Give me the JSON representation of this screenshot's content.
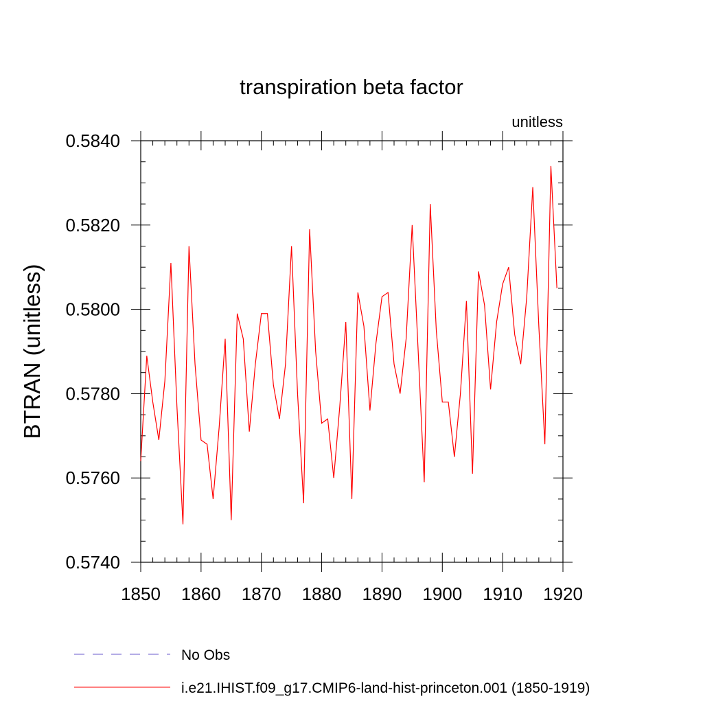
{
  "chart_data": {
    "type": "line",
    "title": "transpiration beta factor",
    "units_label": "unitless",
    "ylabel": "BTRAN  (unitless)",
    "xlabel": "",
    "xlim": [
      1850,
      1920
    ],
    "ylim": [
      0.574,
      0.584
    ],
    "x_ticks": [
      1850,
      1860,
      1870,
      1880,
      1890,
      1900,
      1910,
      1920
    ],
    "y_ticks": [
      "0.5740",
      "0.5760",
      "0.5780",
      "0.5800",
      "0.5820",
      "0.5840"
    ],
    "grid": false,
    "legend": {
      "placement": "bottom",
      "entries": [
        {
          "label": "No Obs",
          "style": "dashed",
          "color": "#6a5acd"
        },
        {
          "label": "i.e21.IHIST.f09_g17.CMIP6-land-hist-princeton.001 (1850-1919)",
          "style": "solid",
          "color": "#ff0000"
        }
      ]
    },
    "series": [
      {
        "color": "#ff0000",
        "x": [
          1850,
          1851,
          1852,
          1853,
          1854,
          1855,
          1856,
          1857,
          1858,
          1859,
          1860,
          1861,
          1862,
          1863,
          1864,
          1865,
          1866,
          1867,
          1868,
          1869,
          1870,
          1871,
          1872,
          1873,
          1874,
          1875,
          1876,
          1877,
          1878,
          1879,
          1880,
          1881,
          1882,
          1883,
          1884,
          1885,
          1886,
          1887,
          1888,
          1889,
          1890,
          1891,
          1892,
          1893,
          1894,
          1895,
          1896,
          1897,
          1898,
          1899,
          1900,
          1901,
          1902,
          1903,
          1904,
          1905,
          1906,
          1907,
          1908,
          1909,
          1910,
          1911,
          1912,
          1913,
          1914,
          1915,
          1916,
          1917,
          1918,
          1919
        ],
        "values": [
          0.5764,
          0.5789,
          0.5778,
          0.5769,
          0.5783,
          0.5811,
          0.5777,
          0.5749,
          0.5815,
          0.5787,
          0.5769,
          0.5768,
          0.5755,
          0.5772,
          0.5793,
          0.575,
          0.5799,
          0.5793,
          0.5771,
          0.5787,
          0.5799,
          0.5799,
          0.5782,
          0.5774,
          0.5787,
          0.5815,
          0.578,
          0.5754,
          0.5819,
          0.579,
          0.5773,
          0.5774,
          0.576,
          0.5777,
          0.5797,
          0.5755,
          0.5804,
          0.5796,
          0.5776,
          0.5792,
          0.5803,
          0.5804,
          0.5787,
          0.578,
          0.5793,
          0.582,
          0.579,
          0.5759,
          0.5825,
          0.5795,
          0.5778,
          0.5778,
          0.5765,
          0.578,
          0.5802,
          0.5761,
          0.5809,
          0.5801,
          0.5781,
          0.5797,
          0.5806,
          0.581,
          0.5794,
          0.5787,
          0.5803,
          0.5829,
          0.5796,
          0.5768,
          0.5834,
          0.5805
        ]
      }
    ]
  }
}
